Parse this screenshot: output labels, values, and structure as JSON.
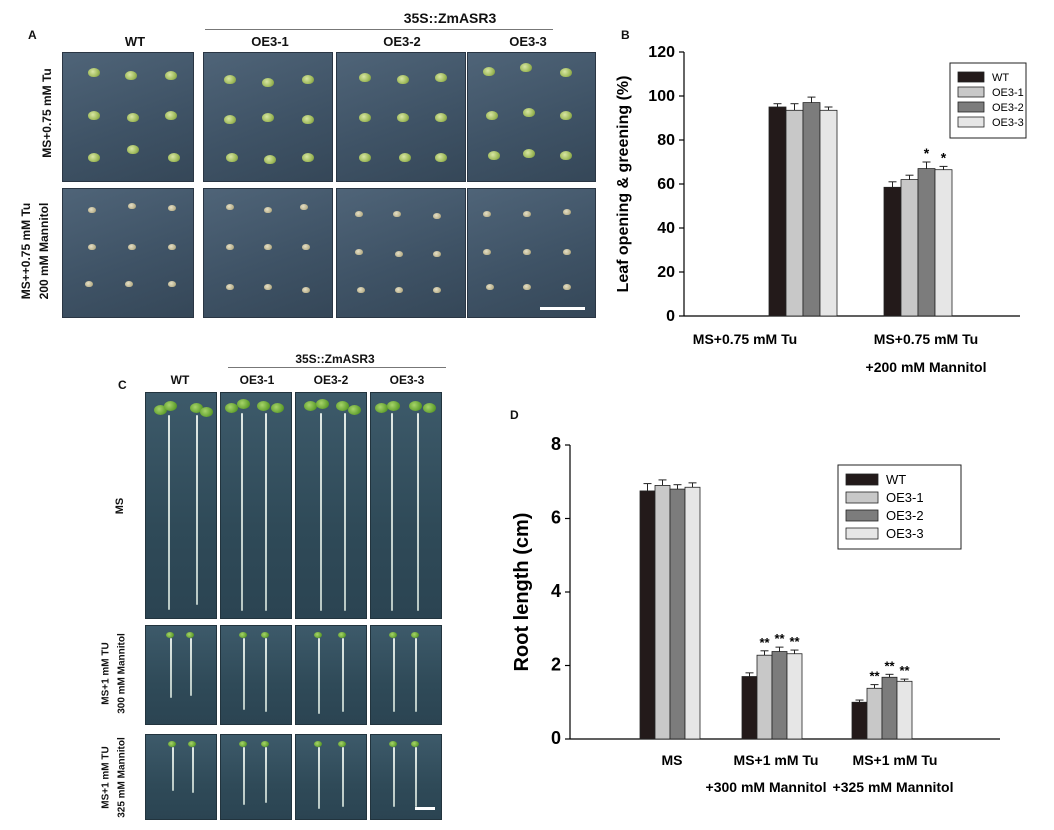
{
  "panel_labels": {
    "a": "A",
    "b": "B",
    "c": "C",
    "d": "D"
  },
  "panelA": {
    "construct": "35S::ZmASR3",
    "columns": [
      "WT",
      "OE3-1",
      "OE3-2",
      "OE3-3"
    ],
    "row1": "MS+0.75 mM Tu",
    "row2_line1": "MS++0.75 mM Tu",
    "row2_line2": "200 mM Mannitol"
  },
  "panelC": {
    "construct": "35S::ZmASR3",
    "columns": [
      "WT",
      "OE3-1",
      "OE3-2",
      "OE3-3"
    ],
    "row1": "MS",
    "row2_line1": "MS+1 mM TU",
    "row2_line2": "300 mM Mannitol",
    "row3_line1": "MS+1 mM TU",
    "row3_line2": "325 mM Mannitol"
  },
  "colors": {
    "WT": "#231a1a",
    "OE3-1": "#c8c8c8",
    "OE3-2": "#7c7c7c",
    "OE3-3": "#e6e6e6"
  },
  "chart_data": [
    {
      "id": "B",
      "type": "bar",
      "title": "",
      "ylabel": "Leaf opening & greening (%)",
      "xlabel": "",
      "ylim": [
        0,
        120
      ],
      "yticks": [
        0,
        20,
        40,
        60,
        80,
        100,
        120
      ],
      "categories": [
        [
          "MS+0.75 mM Tu"
        ],
        [
          "MS+0.75 mM Tu",
          "+200 mM Mannitol"
        ]
      ],
      "legend_position": "top-right",
      "series": [
        {
          "name": "WT",
          "values": [
            95,
            58.5
          ],
          "errors": [
            1.5,
            2.5
          ],
          "sig": [
            "",
            ""
          ]
        },
        {
          "name": "OE3-1",
          "values": [
            93.5,
            62
          ],
          "errors": [
            3,
            2
          ],
          "sig": [
            "",
            ""
          ]
        },
        {
          "name": "OE3-2",
          "values": [
            97,
            67
          ],
          "errors": [
            2.5,
            3
          ],
          "sig": [
            "",
            "*"
          ]
        },
        {
          "name": "OE3-3",
          "values": [
            93.5,
            66.5
          ],
          "errors": [
            1.5,
            1.5
          ],
          "sig": [
            "",
            "*"
          ]
        }
      ]
    },
    {
      "id": "D",
      "type": "bar",
      "title": "",
      "ylabel": "Root length (cm)",
      "xlabel": "",
      "ylim": [
        0,
        8
      ],
      "yticks": [
        0,
        2,
        4,
        6,
        8
      ],
      "categories": [
        [
          "MS"
        ],
        [
          "MS+1 mM Tu",
          "+300 mM Mannitol"
        ],
        [
          "MS+1 mM Tu",
          "+325 mM Mannitol"
        ]
      ],
      "legend_position": "top-right",
      "series": [
        {
          "name": "WT",
          "values": [
            6.75,
            1.7,
            1.0
          ],
          "errors": [
            0.2,
            0.1,
            0.06
          ],
          "sig": [
            "",
            "",
            ""
          ]
        },
        {
          "name": "OE3-1",
          "values": [
            6.9,
            2.28,
            1.38
          ],
          "errors": [
            0.15,
            0.12,
            0.1
          ],
          "sig": [
            "",
            "**",
            "**"
          ]
        },
        {
          "name": "OE3-2",
          "values": [
            6.8,
            2.38,
            1.68
          ],
          "errors": [
            0.12,
            0.12,
            0.08
          ],
          "sig": [
            "",
            "**",
            "**"
          ]
        },
        {
          "name": "OE3-3",
          "values": [
            6.85,
            2.32,
            1.57
          ],
          "errors": [
            0.12,
            0.1,
            0.06
          ],
          "sig": [
            "",
            "**",
            "**"
          ]
        }
      ]
    }
  ]
}
